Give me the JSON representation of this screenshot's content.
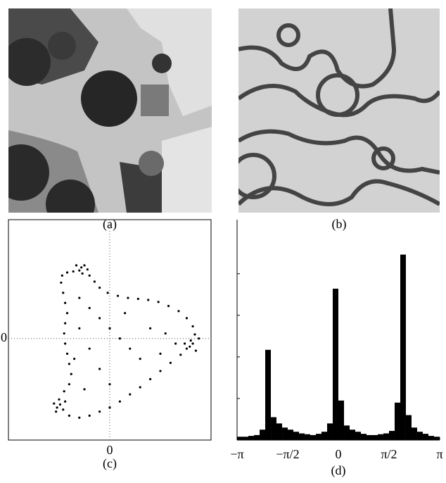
{
  "images": [
    {
      "caption": "(a)"
    },
    {
      "caption": "(b)"
    }
  ],
  "chart_data": [
    {
      "type": "scatter",
      "caption": "(c)",
      "xlim": [
        -1,
        1
      ],
      "ylim": [
        -1,
        1.17
      ],
      "xticks": [
        0
      ],
      "yticks": [
        0
      ],
      "grid": true,
      "color": "#000000",
      "x": [
        -0.28,
        -0.25,
        -0.3,
        -0.33,
        -0.27,
        -0.22,
        -0.36,
        -0.42,
        -0.47,
        -0.48,
        -0.46,
        -0.44,
        -0.42,
        -0.44,
        -0.45,
        -0.44,
        -0.42,
        -0.4,
        -0.38,
        -0.4,
        -0.45,
        -0.49,
        -0.52,
        -0.46,
        -0.5,
        -0.55,
        -0.44,
        -0.53,
        -0.4,
        -0.3,
        -0.2,
        -0.1,
        0.0,
        0.1,
        0.2,
        0.3,
        0.4,
        0.5,
        0.6,
        0.7,
        0.79,
        0.82,
        0.76,
        0.85,
        0.8,
        0.88,
        0.74,
        0.84,
        0.82,
        0.76,
        0.68,
        0.58,
        0.48,
        0.38,
        0.28,
        0.18,
        0.08,
        -0.02,
        -0.1,
        -0.15,
        -0.2,
        -0.3,
        -0.2,
        -0.1,
        0.0,
        0.1,
        0.2,
        0.3,
        -0.3,
        -0.2,
        -0.1,
        0.0,
        0.4,
        0.55,
        0.65,
        0.5,
        -0.35,
        -0.25,
        0.15
      ],
      "y": [
        0.7,
        0.72,
        0.67,
        0.72,
        0.64,
        0.68,
        0.66,
        0.65,
        0.62,
        0.55,
        0.45,
        0.35,
        0.25,
        0.15,
        0.05,
        -0.05,
        -0.15,
        -0.25,
        -0.35,
        -0.45,
        -0.52,
        -0.65,
        -0.68,
        -0.7,
        -0.6,
        -0.64,
        -0.62,
        -0.72,
        -0.76,
        -0.78,
        -0.76,
        -0.72,
        -0.68,
        -0.62,
        -0.55,
        -0.48,
        -0.4,
        -0.32,
        -0.24,
        -0.16,
        -0.08,
        -0.05,
        -0.1,
        -0.12,
        -0.02,
        0.0,
        -0.05,
        0.04,
        0.12,
        0.2,
        0.27,
        0.32,
        0.36,
        0.38,
        0.39,
        0.4,
        0.42,
        0.45,
        0.5,
        0.56,
        0.62,
        0.4,
        0.3,
        0.2,
        0.1,
        0.0,
        -0.1,
        -0.2,
        0.1,
        -0.1,
        -0.3,
        -0.45,
        0.1,
        0.05,
        -0.05,
        -0.15,
        -0.2,
        -0.5,
        0.25
      ]
    },
    {
      "type": "histogram",
      "caption": "(d)",
      "color": "#000000",
      "xlim": [
        -3.142,
        3.142
      ],
      "ylim": [
        0,
        5.3
      ],
      "xticks": [
        {
          "value": -3.142,
          "label": "−π"
        },
        {
          "value": -1.571,
          "label": "−π/2"
        },
        {
          "value": 0,
          "label": "0"
        },
        {
          "value": 1.571,
          "label": "π/2"
        },
        {
          "value": 3.142,
          "label": "π"
        }
      ],
      "yticks": [
        1,
        2,
        3,
        4
      ],
      "bins": [
        -3.142,
        -2.967,
        -2.793,
        -2.618,
        -2.443,
        -2.269,
        -2.094,
        -1.92,
        -1.745,
        -1.571,
        -1.396,
        -1.222,
        -1.047,
        -0.873,
        -0.698,
        -0.524,
        -0.349,
        -0.175,
        0,
        0.175,
        0.349,
        0.524,
        0.698,
        0.873,
        1.047,
        1.222,
        1.396,
        1.571,
        1.745,
        1.92,
        2.094,
        2.269,
        2.443,
        2.618,
        2.793,
        2.967,
        3.142
      ],
      "values": [
        0.08,
        0.08,
        0.1,
        0.12,
        0.25,
        2.17,
        0.55,
        0.4,
        0.3,
        0.25,
        0.2,
        0.16,
        0.14,
        0.12,
        0.15,
        0.2,
        0.4,
        3.64,
        0.95,
        0.35,
        0.25,
        0.2,
        0.15,
        0.12,
        0.12,
        0.14,
        0.16,
        0.22,
        0.9,
        4.46,
        0.6,
        0.3,
        0.2,
        0.15,
        0.1,
        0.08
      ]
    }
  ]
}
